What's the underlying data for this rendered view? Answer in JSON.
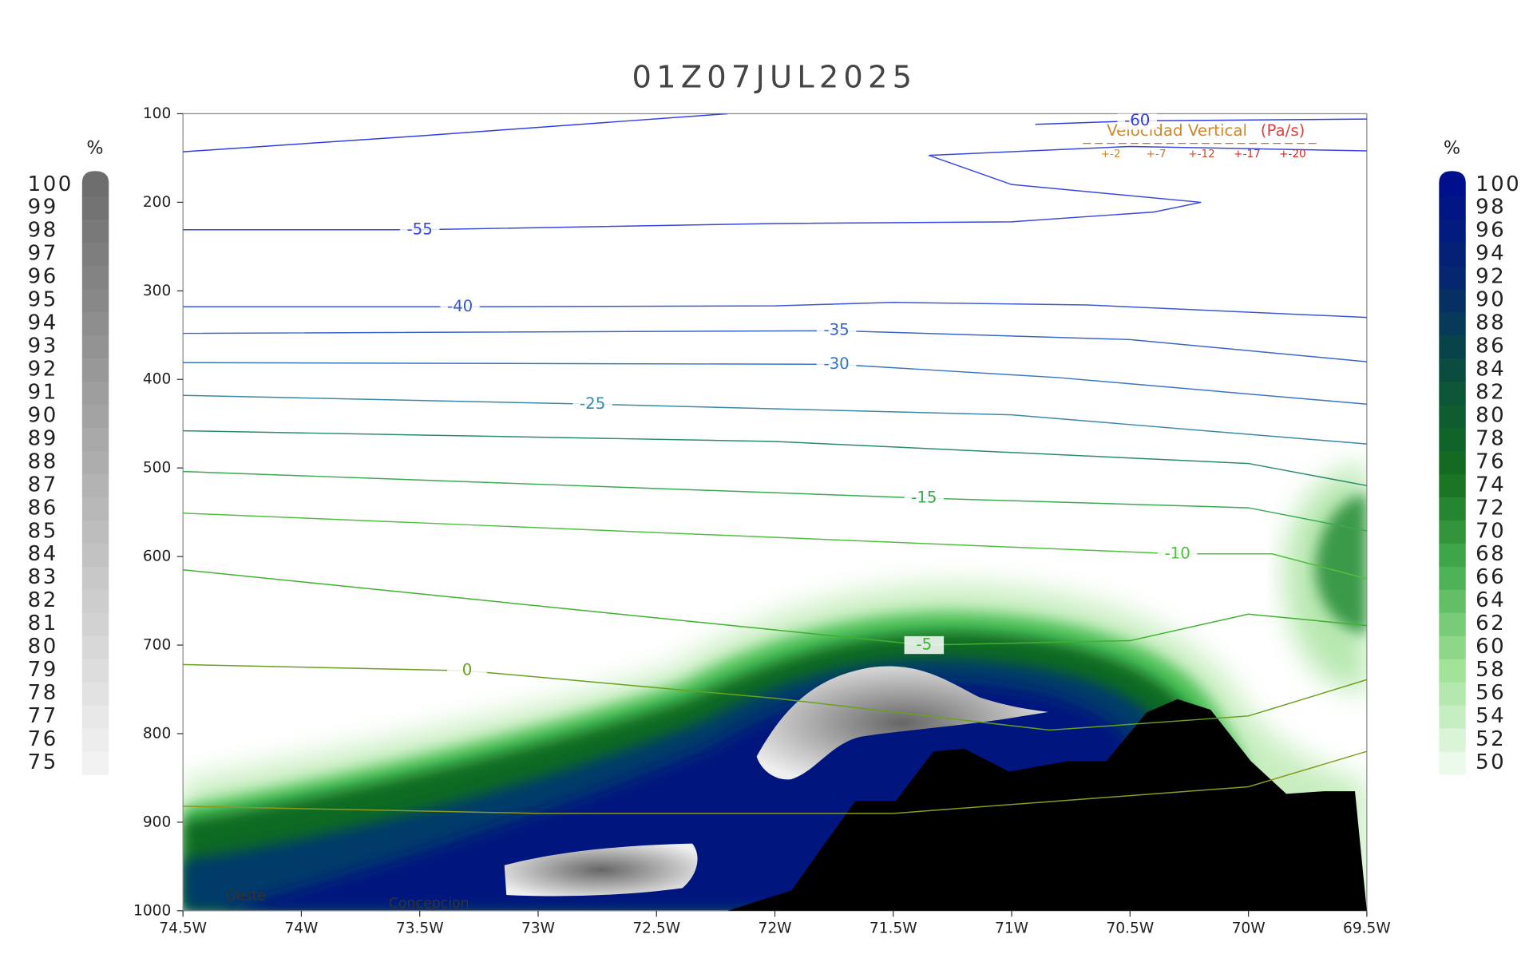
{
  "chart_data": {
    "type": "contour",
    "title": "01Z07JUL2025",
    "xlim": [
      -74.5,
      -69.5
    ],
    "ylim": [
      1000,
      100
    ],
    "xticks": [
      {
        "value": -74.5,
        "label": "74.5W"
      },
      {
        "value": -74,
        "label": "74W"
      },
      {
        "value": -73.5,
        "label": "73.5W"
      },
      {
        "value": -73,
        "label": "73W"
      },
      {
        "value": -72.5,
        "label": "72.5W"
      },
      {
        "value": -72,
        "label": "72W"
      },
      {
        "value": -71.5,
        "label": "71.5W"
      },
      {
        "value": -71,
        "label": "71W"
      },
      {
        "value": -70.5,
        "label": "70.5W"
      },
      {
        "value": -70,
        "label": "70W"
      },
      {
        "value": -69.5,
        "label": "69.5W"
      }
    ],
    "yticks": [
      100,
      200,
      300,
      400,
      500,
      600,
      700,
      800,
      900,
      1000
    ],
    "contours": [
      {
        "level": -60,
        "color": "#3040e0",
        "show_label": true,
        "x": [
          -70.9,
          -70.47,
          -69.5,
          null,
          -74.5,
          -73.5,
          -72.2
        ],
        "y": [
          112,
          108,
          106,
          null,
          143,
          125,
          100
        ]
      },
      {
        "level": -55,
        "color": "#3848d8",
        "show_label": true,
        "x": [
          -74.5,
          -73.5,
          -72,
          -71,
          -70.4,
          -70.2,
          -71,
          -71.35,
          -70.5,
          -69.5
        ],
        "y": [
          231,
          231,
          224,
          222,
          211,
          200,
          180,
          147,
          137,
          142
        ]
      },
      {
        "level": -40,
        "color": "#3a58d0",
        "show_label": true,
        "x": [
          -74.5,
          -73.33,
          -72,
          -71.5,
          -70.68,
          -69.5
        ],
        "y": [
          318,
          318,
          317,
          313,
          316,
          330
        ]
      },
      {
        "level": -35,
        "color": "#3a66c8",
        "show_label": true,
        "x": [
          -74.5,
          -71.74,
          -70.5,
          -69.5
        ],
        "y": [
          348,
          345,
          355,
          380
        ]
      },
      {
        "level": -30,
        "color": "#3a76c0",
        "show_label": true,
        "x": [
          -74.5,
          -71.74,
          -70.8,
          -69.5
        ],
        "y": [
          381,
          383,
          398,
          428
        ]
      },
      {
        "level": -25,
        "color": "#3a88a8",
        "show_label": true,
        "x": [
          -74.5,
          -72.77,
          -71,
          -69.5
        ],
        "y": [
          418,
          428,
          440,
          473
        ]
      },
      {
        "level": -20,
        "color": "#2a8a70",
        "show_label": false,
        "x": [
          -74.5,
          -72,
          -70,
          -69.5
        ],
        "y": [
          458,
          470,
          495,
          520
        ]
      },
      {
        "level": -15,
        "color": "#3aaa50",
        "show_label": true,
        "x": [
          -74.5,
          -71.37,
          -70,
          -69.5
        ],
        "y": [
          504,
          534,
          545,
          571
        ]
      },
      {
        "level": -10,
        "color": "#50c040",
        "show_label": true,
        "x": [
          -74.5,
          -70.3,
          -69.9,
          -69.5
        ],
        "y": [
          551,
          597,
          597,
          625
        ]
      },
      {
        "level": -5,
        "color": "#40b030",
        "show_label": true,
        "x": [
          -74.5,
          -71.37,
          -70.5,
          -70,
          -69.5
        ],
        "y": [
          615,
          700,
          695,
          665,
          678
        ]
      },
      {
        "level": 0,
        "color": "#6aa020",
        "show_label": true,
        "x": [
          -74.5,
          -73.3,
          -72,
          -70.84,
          -70,
          -69.5
        ],
        "y": [
          722,
          729,
          760,
          796,
          780,
          739
        ]
      },
      {
        "level": 5,
        "color": "#8a9a20",
        "show_label": false,
        "x": [
          -74.5,
          -73,
          -71.5,
          -70,
          -69.5
        ],
        "y": [
          882,
          890,
          890,
          860,
          820
        ]
      }
    ],
    "terrain": {
      "color": "#000000",
      "x": [
        -72.2,
        -71.93,
        -71.81,
        -71.66,
        -71.49,
        -71.33,
        -71.2,
        -71.01,
        -70.89,
        -70.76,
        -70.6,
        -70.43,
        -70.3,
        -70.16,
        -69.99,
        -69.84,
        -69.68,
        -69.55,
        -69.5
      ],
      "y": [
        1000,
        977,
        932,
        876,
        876,
        820,
        817,
        843,
        837,
        831,
        831,
        776,
        761,
        773,
        831,
        868,
        865,
        865,
        1000
      ]
    },
    "legend": {
      "title": "Velocidad Vertical",
      "unit": "(Pa/s)",
      "entries": [
        "+-2",
        "+-7",
        "+-12",
        "+-17",
        "+-20"
      ]
    },
    "annotations": [
      "Oeste",
      "Concepcion"
    ],
    "colorbar_left": {
      "unit": "%",
      "ticks": [
        75,
        76,
        77,
        78,
        79,
        80,
        81,
        82,
        83,
        84,
        85,
        86,
        87,
        88,
        89,
        90,
        91,
        92,
        93,
        94,
        95,
        96,
        97,
        98,
        99,
        100
      ]
    },
    "colorbar_right": {
      "unit": "%",
      "ticks": [
        50,
        52,
        54,
        56,
        58,
        60,
        62,
        64,
        66,
        68,
        70,
        72,
        74,
        76,
        78,
        80,
        82,
        84,
        86,
        88,
        90,
        92,
        94,
        96,
        98,
        100
      ]
    }
  }
}
